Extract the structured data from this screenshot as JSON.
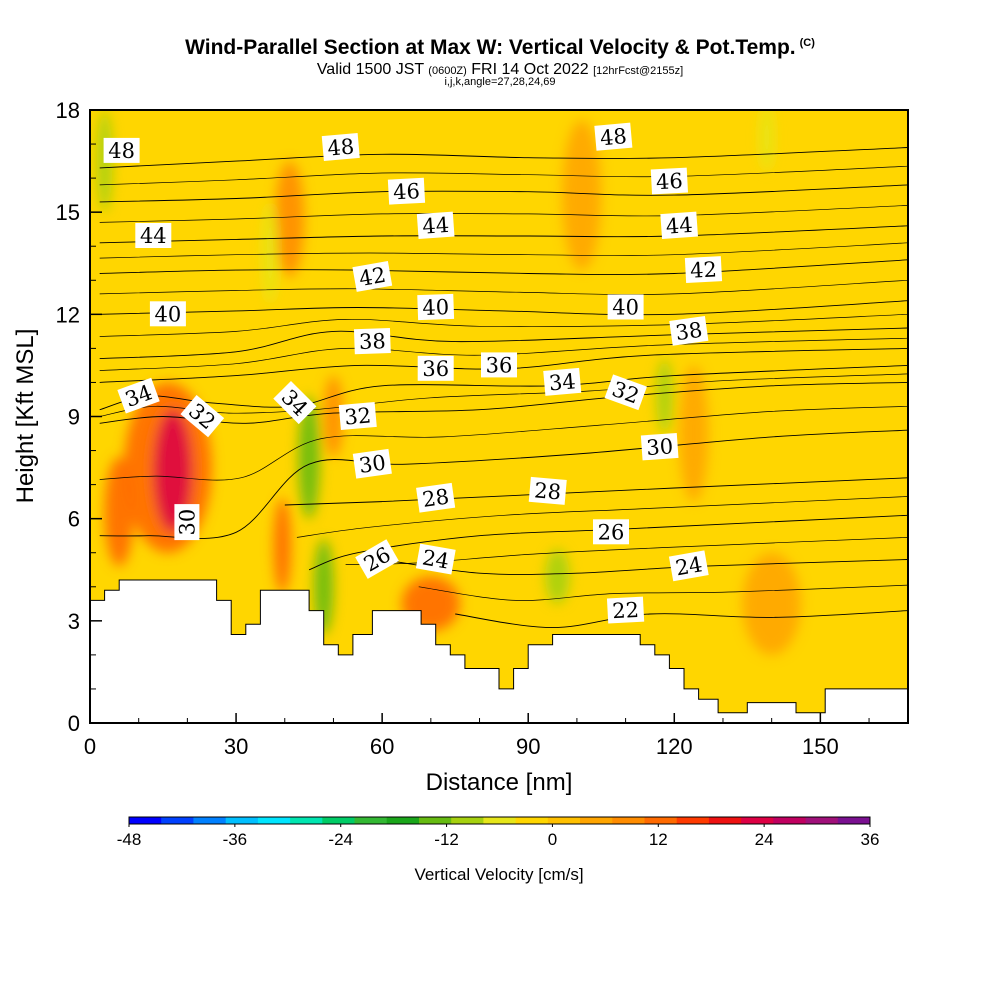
{
  "header": {
    "title": "Wind-Parallel Section at Max W: Vertical Velocity & Pot.Temp.",
    "copyright": "(C)",
    "valid_prefix": "Valid 1500 JST",
    "valid_z": "(0600Z)",
    "valid_date": "FRI 14 Oct 2022",
    "forecast": "[12hrFcst@2155z]",
    "ijk": "i,j,k,angle=27,28,24,69"
  },
  "chart_data": {
    "type": "heatmap",
    "xlabel": "Distance [nm]",
    "ylabel": "Height [Kft MSL]",
    "xlim": [
      0,
      168
    ],
    "ylim": [
      0,
      18
    ],
    "x_ticks": [
      "0",
      "30",
      "60",
      "90",
      "120",
      "150"
    ],
    "y_ticks": [
      "0",
      "3",
      "6",
      "9",
      "12",
      "15",
      "18"
    ],
    "x_tick_values": [
      0,
      30,
      60,
      90,
      120,
      150
    ],
    "y_tick_values": [
      0,
      3,
      6,
      9,
      12,
      15,
      18
    ],
    "grid": false,
    "background_color": "#ffd600",
    "colorbar": {
      "title": "Vertical Velocity [cm/s]",
      "labels": [
        "-48",
        "-36",
        "-24",
        "-12",
        "0",
        "12",
        "24",
        "36"
      ],
      "min": -48,
      "max": 36,
      "colors": [
        "#0000ff",
        "#0040ff",
        "#0080ff",
        "#00bfff",
        "#00e5ff",
        "#00e5b0",
        "#00cc66",
        "#33b833",
        "#1aa61a",
        "#66bb11",
        "#a6d10f",
        "#e6e61a",
        "#ffd600",
        "#ffc000",
        "#ffa500",
        "#ff8c00",
        "#ff6a00",
        "#ff3a00",
        "#ee1111",
        "#dd0044",
        "#c00060",
        "#a0107a",
        "#7a1090"
      ]
    },
    "terrain": [
      [
        0,
        3.6
      ],
      [
        3,
        3.6
      ],
      [
        3,
        3.9
      ],
      [
        6,
        3.9
      ],
      [
        6,
        4.2
      ],
      [
        26,
        4.2
      ],
      [
        26,
        3.6
      ],
      [
        29,
        3.6
      ],
      [
        29,
        2.6
      ],
      [
        32,
        2.6
      ],
      [
        32,
        2.9
      ],
      [
        35,
        2.9
      ],
      [
        35,
        3.9
      ],
      [
        45,
        3.9
      ],
      [
        45,
        3.3
      ],
      [
        48,
        3.3
      ],
      [
        48,
        2.3
      ],
      [
        51,
        2.3
      ],
      [
        51,
        2.0
      ],
      [
        54,
        2.0
      ],
      [
        54,
        2.6
      ],
      [
        58,
        2.6
      ],
      [
        58,
        3.3
      ],
      [
        68,
        3.3
      ],
      [
        68,
        2.9
      ],
      [
        71,
        2.9
      ],
      [
        71,
        2.3
      ],
      [
        74,
        2.3
      ],
      [
        74,
        2.0
      ],
      [
        77,
        2.0
      ],
      [
        77,
        1.6
      ],
      [
        84,
        1.6
      ],
      [
        84,
        1.0
      ],
      [
        87,
        1.0
      ],
      [
        87,
        1.6
      ],
      [
        90,
        1.6
      ],
      [
        90,
        2.3
      ],
      [
        95,
        2.3
      ],
      [
        95,
        2.6
      ],
      [
        113,
        2.6
      ],
      [
        113,
        2.3
      ],
      [
        116,
        2.3
      ],
      [
        116,
        2.0
      ],
      [
        119,
        2.0
      ],
      [
        119,
        1.6
      ],
      [
        122,
        1.6
      ],
      [
        122,
        1.0
      ],
      [
        125,
        1.0
      ],
      [
        125,
        0.7
      ],
      [
        129,
        0.7
      ],
      [
        129,
        0.3
      ],
      [
        135,
        0.3
      ],
      [
        135,
        0.6
      ],
      [
        145,
        0.6
      ],
      [
        145,
        0.3
      ],
      [
        151,
        0.3
      ],
      [
        151,
        1.0
      ],
      [
        168,
        1.0
      ]
    ],
    "series": [
      {
        "kind": "updraft",
        "level": 12,
        "x": 16,
        "y": 7.5,
        "rx": 9,
        "ry": 2.5
      },
      {
        "kind": "updraft",
        "level": 22,
        "x": 17,
        "y": 7.4,
        "rx": 4,
        "ry": 1.8
      },
      {
        "kind": "updraft",
        "level": 12,
        "x": 6,
        "y": 6.2,
        "rx": 3,
        "ry": 1.6
      },
      {
        "kind": "updraft",
        "level": 14,
        "x": 39.5,
        "y": 5.2,
        "rx": 1.8,
        "ry": 1.4
      },
      {
        "kind": "updraft",
        "level": 8,
        "x": 41,
        "y": 14.8,
        "rx": 3,
        "ry": 1.7
      },
      {
        "kind": "updraft",
        "level": 10,
        "x": 50,
        "y": 9.0,
        "rx": 2,
        "ry": 1.2
      },
      {
        "kind": "updraft",
        "level": 12,
        "x": 70,
        "y": 3.5,
        "rx": 6,
        "ry": 0.8
      },
      {
        "kind": "updraft",
        "level": 6,
        "x": 101,
        "y": 15.5,
        "rx": 4,
        "ry": 2.2
      },
      {
        "kind": "updraft",
        "level": 6,
        "x": 124,
        "y": 8.5,
        "rx": 3,
        "ry": 2
      },
      {
        "kind": "updraft",
        "level": 6,
        "x": 140,
        "y": 3.5,
        "rx": 6,
        "ry": 1.5
      },
      {
        "kind": "downdraft",
        "level": -12,
        "x": 45,
        "y": 7.8,
        "rx": 2.2,
        "ry": 1.8
      },
      {
        "kind": "downdraft",
        "level": -12,
        "x": 48,
        "y": 4.0,
        "rx": 2,
        "ry": 1.4
      },
      {
        "kind": "downdraft",
        "level": -9,
        "x": 3,
        "y": 16.5,
        "rx": 1.6,
        "ry": 1.5
      },
      {
        "kind": "downdraft",
        "level": -9,
        "x": 118,
        "y": 9.6,
        "rx": 1.7,
        "ry": 1.1
      },
      {
        "kind": "downdraft",
        "level": -9,
        "x": 96,
        "y": 4.3,
        "rx": 2.5,
        "ry": 0.8
      },
      {
        "kind": "downdraft",
        "level": -6,
        "x": 37,
        "y": 13.8,
        "rx": 1.6,
        "ry": 1.5
      },
      {
        "kind": "downdraft",
        "level": -6,
        "x": 139,
        "y": 17.2,
        "rx": 1.5,
        "ry": 1.0
      }
    ],
    "contours": [
      {
        "theta": 22,
        "pts": [
          [
            75,
            3.2
          ],
          [
            95,
            2.8
          ],
          [
            115,
            3.2
          ],
          [
            140,
            3.1
          ],
          [
            168,
            3.3
          ]
        ]
      },
      {
        "theta": 24,
        "pts": [
          [
            60,
            4.8
          ],
          [
            80,
            4.4
          ],
          [
            100,
            4.4
          ],
          [
            125,
            4.6
          ],
          [
            168,
            4.8
          ]
        ]
      },
      {
        "theta": 26,
        "pts": [
          [
            45,
            4.5
          ],
          [
            55,
            5.0
          ],
          [
            80,
            5.5
          ],
          [
            110,
            5.7
          ],
          [
            168,
            6.1
          ]
        ]
      },
      {
        "theta": 28,
        "pts": [
          [
            40,
            6.4
          ],
          [
            60,
            6.5
          ],
          [
            90,
            6.7
          ],
          [
            120,
            6.9
          ],
          [
            168,
            7.2
          ]
        ]
      },
      {
        "theta": 30,
        "pts": [
          [
            2,
            5.5
          ],
          [
            12,
            5.5
          ],
          [
            30,
            5.6
          ],
          [
            45,
            7.6
          ],
          [
            65,
            7.6
          ],
          [
            100,
            7.9
          ],
          [
            140,
            8.4
          ],
          [
            168,
            8.6
          ]
        ]
      },
      {
        "theta": 32,
        "pts": [
          [
            2,
            8.8
          ],
          [
            15,
            9.0
          ],
          [
            32,
            8.8
          ],
          [
            50,
            9.1
          ],
          [
            80,
            9.2
          ],
          [
            110,
            9.6
          ],
          [
            140,
            9.9
          ],
          [
            168,
            10.0
          ]
        ]
      },
      {
        "theta": 34,
        "pts": [
          [
            2,
            9.2
          ],
          [
            12,
            9.6
          ],
          [
            25,
            9.4
          ],
          [
            42,
            9.3
          ],
          [
            60,
            9.9
          ],
          [
            95,
            9.9
          ],
          [
            120,
            10.2
          ],
          [
            168,
            10.5
          ]
        ]
      },
      {
        "theta": 36,
        "pts": [
          [
            2,
            10.0
          ],
          [
            30,
            10.2
          ],
          [
            55,
            10.5
          ],
          [
            85,
            10.4
          ],
          [
            115,
            10.8
          ],
          [
            168,
            11.0
          ]
        ]
      },
      {
        "theta": 38,
        "pts": [
          [
            2,
            10.7
          ],
          [
            30,
            10.9
          ],
          [
            50,
            11.5
          ],
          [
            75,
            11.2
          ],
          [
            120,
            11.4
          ],
          [
            168,
            11.6
          ]
        ]
      },
      {
        "theta": 40,
        "pts": [
          [
            2,
            12.0
          ],
          [
            30,
            12.1
          ],
          [
            55,
            12.2
          ],
          [
            85,
            12.1
          ],
          [
            120,
            12.0
          ],
          [
            168,
            12.4
          ]
        ]
      },
      {
        "theta": 42,
        "pts": [
          [
            2,
            13.2
          ],
          [
            30,
            13.3
          ],
          [
            55,
            13.3
          ],
          [
            90,
            13.2
          ],
          [
            120,
            13.2
          ],
          [
            168,
            13.6
          ]
        ]
      },
      {
        "theta": 44,
        "pts": [
          [
            2,
            14.1
          ],
          [
            30,
            14.2
          ],
          [
            60,
            14.3
          ],
          [
            90,
            14.3
          ],
          [
            120,
            14.3
          ],
          [
            168,
            14.6
          ]
        ]
      },
      {
        "theta": 46,
        "pts": [
          [
            2,
            15.3
          ],
          [
            30,
            15.4
          ],
          [
            60,
            15.6
          ],
          [
            90,
            15.6
          ],
          [
            120,
            15.5
          ],
          [
            168,
            15.8
          ]
        ]
      },
      {
        "theta": 48,
        "pts": [
          [
            2,
            16.3
          ],
          [
            30,
            16.5
          ],
          [
            60,
            16.7
          ],
          [
            90,
            16.6
          ],
          [
            120,
            16.6
          ],
          [
            168,
            16.9
          ]
        ]
      }
    ],
    "contour_labels": [
      {
        "text": "48",
        "x": 6.5,
        "y": 16.8,
        "rot": 0
      },
      {
        "text": "48",
        "x": 51.5,
        "y": 16.9,
        "rot": -5
      },
      {
        "text": "48",
        "x": 107.5,
        "y": 17.2,
        "rot": -5
      },
      {
        "text": "46",
        "x": 65,
        "y": 15.6,
        "rot": -3
      },
      {
        "text": "46",
        "x": 119,
        "y": 15.9,
        "rot": -3
      },
      {
        "text": "44",
        "x": 13,
        "y": 14.3,
        "rot": 0
      },
      {
        "text": "44",
        "x": 71,
        "y": 14.6,
        "rot": -4
      },
      {
        "text": "44",
        "x": 121,
        "y": 14.6,
        "rot": -4
      },
      {
        "text": "42",
        "x": 58,
        "y": 13.1,
        "rot": -10
      },
      {
        "text": "42",
        "x": 126,
        "y": 13.3,
        "rot": -3
      },
      {
        "text": "40",
        "x": 16,
        "y": 12.0,
        "rot": 0
      },
      {
        "text": "40",
        "x": 71,
        "y": 12.2,
        "rot": -2
      },
      {
        "text": "40",
        "x": 110,
        "y": 12.2,
        "rot": 0
      },
      {
        "text": "38",
        "x": 58,
        "y": 11.2,
        "rot": -2
      },
      {
        "text": "38",
        "x": 123,
        "y": 11.5,
        "rot": -8
      },
      {
        "text": "36",
        "x": 71,
        "y": 10.4,
        "rot": 0
      },
      {
        "text": "36",
        "x": 84,
        "y": 10.5,
        "rot": 0
      },
      {
        "text": "34",
        "x": 10,
        "y": 9.6,
        "rot": -20
      },
      {
        "text": "34",
        "x": 42,
        "y": 9.4,
        "rot": 45
      },
      {
        "text": "34",
        "x": 97,
        "y": 10.0,
        "rot": -5
      },
      {
        "text": "32",
        "x": 23,
        "y": 9.0,
        "rot": 40
      },
      {
        "text": "32",
        "x": 55,
        "y": 9.0,
        "rot": -5
      },
      {
        "text": "32",
        "x": 110,
        "y": 9.7,
        "rot": 20
      },
      {
        "text": "30",
        "x": 58,
        "y": 7.6,
        "rot": -8
      },
      {
        "text": "30",
        "x": 117,
        "y": 8.1,
        "rot": -4
      },
      {
        "text": "30",
        "x": 20,
        "y": 5.9,
        "rot": -90
      },
      {
        "text": "28",
        "x": 71,
        "y": 6.6,
        "rot": -8
      },
      {
        "text": "28",
        "x": 94,
        "y": 6.8,
        "rot": 5
      },
      {
        "text": "26",
        "x": 59,
        "y": 4.8,
        "rot": -30
      },
      {
        "text": "26",
        "x": 107,
        "y": 5.6,
        "rot": 0
      },
      {
        "text": "24",
        "x": 71,
        "y": 4.8,
        "rot": 10
      },
      {
        "text": "24",
        "x": 123,
        "y": 4.6,
        "rot": -10
      },
      {
        "text": "22",
        "x": 110,
        "y": 3.3,
        "rot": -3
      }
    ]
  }
}
